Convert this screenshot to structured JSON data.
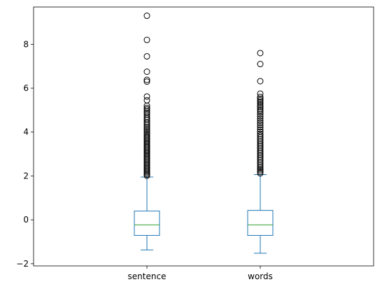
{
  "chart_data": {
    "type": "box",
    "title": "",
    "xlabel": "",
    "ylabel": "",
    "categories": [
      "sentence",
      "words"
    ],
    "ylim": [
      -2.1,
      9.7
    ],
    "yticks": [
      -2,
      0,
      2,
      4,
      6,
      8
    ],
    "grid": false,
    "colors": {
      "box": "#1f77b4",
      "median": "#2ca02c",
      "flier": "#000000"
    },
    "boxes": [
      {
        "name": "sentence",
        "whisker_low": -1.37,
        "q1": -0.71,
        "median": -0.23,
        "q3": 0.4,
        "whisker_high": 1.95,
        "fliers": [
          9.3,
          8.2,
          7.45,
          6.75,
          6.38,
          6.3,
          5.62,
          5.45,
          5.2,
          5.1,
          5.03,
          4.95,
          4.88,
          4.8,
          4.7,
          4.62,
          4.55,
          4.45,
          4.38,
          4.3,
          4.22,
          4.15,
          4.08,
          4.0,
          3.93,
          3.86,
          3.8,
          3.74,
          3.68,
          3.62,
          3.56,
          3.5,
          3.44,
          3.38,
          3.32,
          3.26,
          3.2,
          3.14,
          3.08,
          3.02,
          2.96,
          2.9,
          2.84,
          2.78,
          2.72,
          2.66,
          2.6,
          2.54,
          2.48,
          2.42,
          2.36,
          2.3,
          2.24,
          2.18,
          2.12,
          2.06,
          2.01
        ]
      },
      {
        "name": "words",
        "whisker_low": -1.52,
        "q1": -0.71,
        "median": -0.23,
        "q3": 0.43,
        "whisker_high": 2.06,
        "fliers": [
          7.6,
          7.1,
          6.32,
          5.75,
          5.6,
          5.52,
          5.45,
          5.38,
          5.3,
          5.22,
          5.15,
          5.08,
          5.0,
          4.92,
          4.82,
          4.72,
          4.62,
          4.52,
          4.42,
          4.32,
          4.22,
          4.12,
          4.02,
          3.92,
          3.84,
          3.76,
          3.68,
          3.6,
          3.52,
          3.44,
          3.36,
          3.28,
          3.2,
          3.12,
          3.04,
          2.96,
          2.88,
          2.8,
          2.72,
          2.64,
          2.56,
          2.48,
          2.4,
          2.33,
          2.26,
          2.19,
          2.12
        ]
      }
    ]
  }
}
